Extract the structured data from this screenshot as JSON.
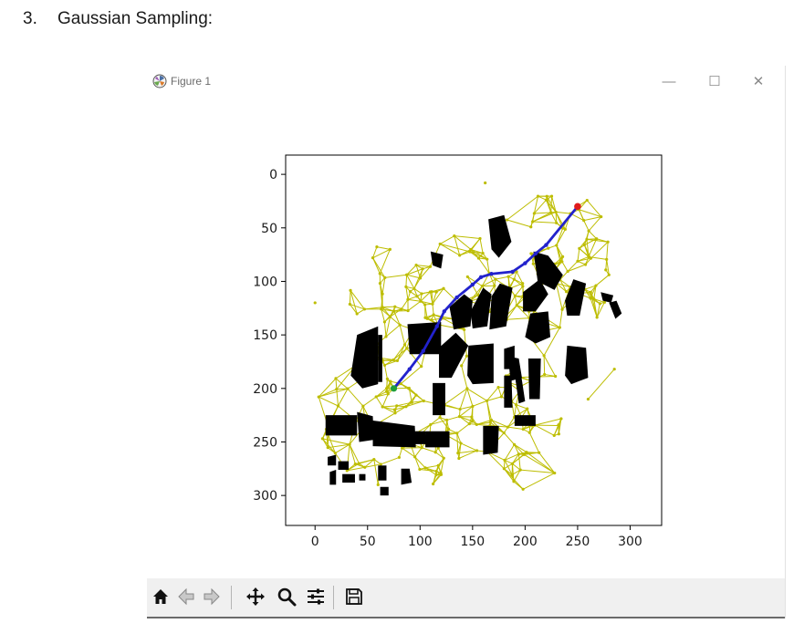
{
  "document": {
    "list_number": "3.",
    "heading": "Gaussian Sampling:"
  },
  "window": {
    "title": "Figure 1",
    "minimize_glyph": "—",
    "maximize_glyph": "☐",
    "close_glyph": "✕"
  },
  "toolbar": {
    "buttons": [
      {
        "name": "home-icon"
      },
      {
        "name": "back-arrow-icon"
      },
      {
        "name": "forward-arrow-icon"
      },
      {
        "name": "pan-move-icon"
      },
      {
        "name": "zoom-magnifier-icon"
      },
      {
        "name": "configure-subplots-icon"
      },
      {
        "name": "save-figure-icon"
      }
    ]
  },
  "chart_data": {
    "type": "scatter",
    "title": "",
    "xlabel": "",
    "ylabel": "",
    "xlim": [
      -28,
      330
    ],
    "ylim": [
      328,
      -18
    ],
    "y_inverted": true,
    "xticks": [
      0,
      50,
      100,
      150,
      200,
      250,
      300
    ],
    "yticks": [
      0,
      50,
      100,
      150,
      200,
      250,
      300
    ],
    "grid": false,
    "colors": {
      "roadmap": "#bdbd00",
      "obstacles": "#000000",
      "path": "#2222cc",
      "start": "#1f9e3a",
      "goal": "#e01b1b"
    },
    "start_point": [
      75,
      200
    ],
    "goal_point": [
      250,
      30
    ],
    "path": [
      [
        75,
        200
      ],
      [
        90,
        182
      ],
      [
        103,
        165
      ],
      [
        116,
        142
      ],
      [
        123,
        128
      ],
      [
        135,
        115
      ],
      [
        150,
        103
      ],
      [
        158,
        96
      ],
      [
        168,
        93
      ],
      [
        188,
        91
      ],
      [
        200,
        83
      ],
      [
        210,
        74
      ],
      [
        220,
        66
      ],
      [
        250,
        30
      ]
    ],
    "obstacles": [
      [
        [
          165,
          42
        ],
        [
          180,
          38
        ],
        [
          187,
          63
        ],
        [
          175,
          78
        ],
        [
          168,
          70
        ]
      ],
      [
        [
          110,
          72
        ],
        [
          122,
          75
        ],
        [
          120,
          88
        ],
        [
          112,
          85
        ]
      ],
      [
        [
          128,
          124
        ],
        [
          142,
          112
        ],
        [
          150,
          118
        ],
        [
          148,
          142
        ],
        [
          132,
          145
        ]
      ],
      [
        [
          148,
          128
        ],
        [
          160,
          106
        ],
        [
          168,
          112
        ],
        [
          164,
          142
        ],
        [
          150,
          144
        ]
      ],
      [
        [
          168,
          114
        ],
        [
          176,
          102
        ],
        [
          188,
          106
        ],
        [
          182,
          142
        ],
        [
          166,
          145
        ]
      ],
      [
        [
          198,
          110
        ],
        [
          214,
          98
        ],
        [
          222,
          112
        ],
        [
          210,
          128
        ],
        [
          198,
          128
        ]
      ],
      [
        [
          205,
          130
        ],
        [
          222,
          128
        ],
        [
          224,
          152
        ],
        [
          210,
          158
        ],
        [
          200,
          152
        ]
      ],
      [
        [
          238,
          118
        ],
        [
          246,
          98
        ],
        [
          258,
          102
        ],
        [
          252,
          132
        ],
        [
          240,
          132
        ]
      ],
      [
        [
          208,
          72
        ],
        [
          222,
          76
        ],
        [
          236,
          94
        ],
        [
          228,
          108
        ],
        [
          212,
          100
        ]
      ],
      [
        [
          88,
          140
        ],
        [
          120,
          138
        ],
        [
          120,
          168
        ],
        [
          90,
          168
        ]
      ],
      [
        [
          40,
          150
        ],
        [
          60,
          142
        ],
        [
          60,
          196
        ],
        [
          45,
          200
        ],
        [
          34,
          188
        ]
      ],
      [
        [
          60,
          150
        ],
        [
          64,
          150
        ],
        [
          64,
          194
        ],
        [
          60,
          194
        ]
      ],
      [
        [
          118,
          162
        ],
        [
          134,
          148
        ],
        [
          146,
          160
        ],
        [
          130,
          190
        ],
        [
          118,
          190
        ]
      ],
      [
        [
          146,
          160
        ],
        [
          170,
          158
        ],
        [
          170,
          195
        ],
        [
          150,
          196
        ],
        [
          145,
          188
        ]
      ],
      [
        [
          180,
          163
        ],
        [
          190,
          160
        ],
        [
          190,
          182
        ],
        [
          180,
          182
        ]
      ],
      [
        [
          184,
          170
        ],
        [
          194,
          172
        ],
        [
          197,
          190
        ],
        [
          186,
          193
        ]
      ],
      [
        [
          203,
          172
        ],
        [
          215,
          172
        ],
        [
          214,
          210
        ],
        [
          204,
          210
        ]
      ],
      [
        [
          190,
          186
        ],
        [
          196,
          186
        ],
        [
          200,
          212
        ],
        [
          194,
          214
        ]
      ],
      [
        [
          180,
          188
        ],
        [
          187,
          188
        ],
        [
          188,
          218
        ],
        [
          180,
          218
        ]
      ],
      [
        [
          240,
          160
        ],
        [
          258,
          162
        ],
        [
          260,
          190
        ],
        [
          244,
          196
        ],
        [
          238,
          188
        ]
      ],
      [
        [
          280,
          120
        ],
        [
          287,
          118
        ],
        [
          292,
          130
        ],
        [
          286,
          135
        ]
      ],
      [
        [
          272,
          110
        ],
        [
          284,
          113
        ],
        [
          282,
          120
        ],
        [
          274,
          118
        ]
      ],
      [
        [
          112,
          195
        ],
        [
          124,
          195
        ],
        [
          124,
          225
        ],
        [
          112,
          225
        ]
      ],
      [
        [
          10,
          225
        ],
        [
          40,
          225
        ],
        [
          40,
          244
        ],
        [
          10,
          244
        ]
      ],
      [
        [
          40,
          222
        ],
        [
          55,
          226
        ],
        [
          56,
          248
        ],
        [
          42,
          250
        ]
      ],
      [
        [
          55,
          230
        ],
        [
          95,
          235
        ],
        [
          96,
          255
        ],
        [
          55,
          254
        ]
      ],
      [
        [
          95,
          240
        ],
        [
          105,
          240
        ],
        [
          106,
          252
        ],
        [
          95,
          252
        ]
      ],
      [
        [
          105,
          240
        ],
        [
          128,
          240
        ],
        [
          128,
          255
        ],
        [
          105,
          255
        ]
      ],
      [
        [
          160,
          235
        ],
        [
          175,
          235
        ],
        [
          174,
          260
        ],
        [
          160,
          262
        ]
      ],
      [
        [
          190,
          225
        ],
        [
          210,
          225
        ],
        [
          210,
          235
        ],
        [
          190,
          235
        ]
      ],
      [
        [
          12,
          264
        ],
        [
          20,
          262
        ],
        [
          20,
          272
        ],
        [
          12,
          272
        ]
      ],
      [
        [
          14,
          278
        ],
        [
          20,
          276
        ],
        [
          20,
          290
        ],
        [
          14,
          290
        ]
      ],
      [
        [
          22,
          268
        ],
        [
          32,
          268
        ],
        [
          32,
          276
        ],
        [
          22,
          276
        ]
      ],
      [
        [
          26,
          280
        ],
        [
          38,
          280
        ],
        [
          38,
          288
        ],
        [
          26,
          288
        ]
      ],
      [
        [
          42,
          280
        ],
        [
          48,
          280
        ],
        [
          48,
          286
        ],
        [
          42,
          286
        ]
      ],
      [
        [
          60,
          272
        ],
        [
          68,
          272
        ],
        [
          68,
          286
        ],
        [
          60,
          286
        ]
      ],
      [
        [
          62,
          292
        ],
        [
          70,
          292
        ],
        [
          70,
          300
        ],
        [
          62,
          300
        ]
      ],
      [
        [
          82,
          275
        ],
        [
          90,
          275
        ],
        [
          92,
          288
        ],
        [
          82,
          290
        ]
      ]
    ]
  }
}
